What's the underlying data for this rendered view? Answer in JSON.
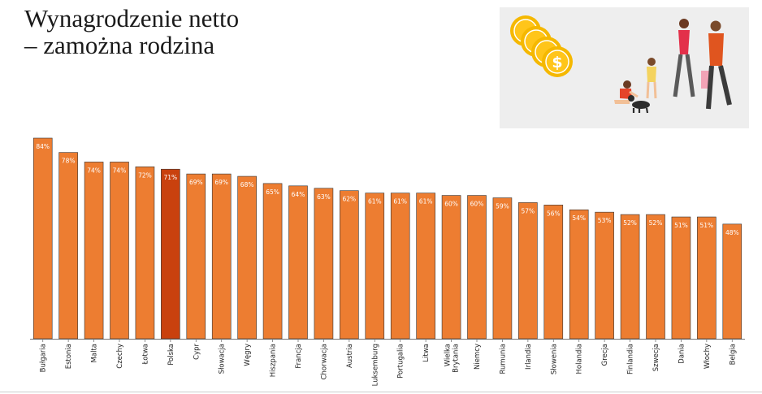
{
  "header": {
    "title_line1": "Wynagrodzenie netto",
    "title_line2": "– zamożna rodzina"
  },
  "illustration": {
    "coin_symbol": "$",
    "coin_color": "#f5b800",
    "coin_inner_color": "#ffc51a"
  },
  "colors": {
    "bar": "#ed7d31",
    "bar_highlight": "#c9410e",
    "bar_stroke": "#333333",
    "axis": "#777777"
  },
  "chart_data": {
    "type": "bar",
    "categories": [
      "Bułgaria",
      "Estonia",
      "Malta",
      "Czechy",
      "Łotwa",
      "Polska",
      "Cypr",
      "Słowacja",
      "Węgry",
      "Hiszpania",
      "Francja",
      "Chorwacja",
      "Austria",
      "Luksemburg",
      "Portugalia",
      "Litwa",
      "Wielka Brytania",
      "Niemcy",
      "Rumunia",
      "Irlandia",
      "Słowenia",
      "Holandia",
      "Grecja",
      "Finlandia",
      "Szwecja",
      "Dania",
      "Włochy",
      "Belgia"
    ],
    "category_lines": [
      [
        "Bułgaria"
      ],
      [
        "Estonia"
      ],
      [
        "Malta"
      ],
      [
        "Czechy"
      ],
      [
        "Łotwa"
      ],
      [
        "Polska"
      ],
      [
        "Cypr"
      ],
      [
        "Słowacja"
      ],
      [
        "Węgry"
      ],
      [
        "Hiszpania"
      ],
      [
        "Francja"
      ],
      [
        "Chorwacja"
      ],
      [
        "Austria"
      ],
      [
        "Luksemburg"
      ],
      [
        "Portugalia"
      ],
      [
        "Litwa"
      ],
      [
        "Wielka",
        "Brytania"
      ],
      [
        "Niemcy"
      ],
      [
        "Rumunia"
      ],
      [
        "Irlandia"
      ],
      [
        "Słowenia"
      ],
      [
        "Holandia"
      ],
      [
        "Grecja"
      ],
      [
        "Finlandia"
      ],
      [
        "Szwecja"
      ],
      [
        "Dania"
      ],
      [
        "Włochy"
      ],
      [
        "Belgia"
      ]
    ],
    "values": [
      84,
      78,
      74,
      74,
      72,
      71,
      69,
      69,
      68,
      65,
      64,
      63,
      62,
      61,
      61,
      61,
      60,
      60,
      59,
      57,
      56,
      54,
      53,
      52,
      52,
      51,
      51,
      48
    ],
    "value_labels": [
      "84%",
      "78%",
      "74%",
      "74%",
      "72%",
      "71%",
      "69%",
      "69%",
      "68%",
      "65%",
      "64%",
      "63%",
      "62%",
      "61%",
      "61%",
      "61%",
      "60%",
      "60%",
      "59%",
      "57%",
      "56%",
      "54%",
      "53%",
      "52%",
      "52%",
      "51%",
      "51%",
      "48%"
    ],
    "highlight": "Polska",
    "ylim": [
      0,
      84
    ],
    "grid": false,
    "legend": "none"
  }
}
